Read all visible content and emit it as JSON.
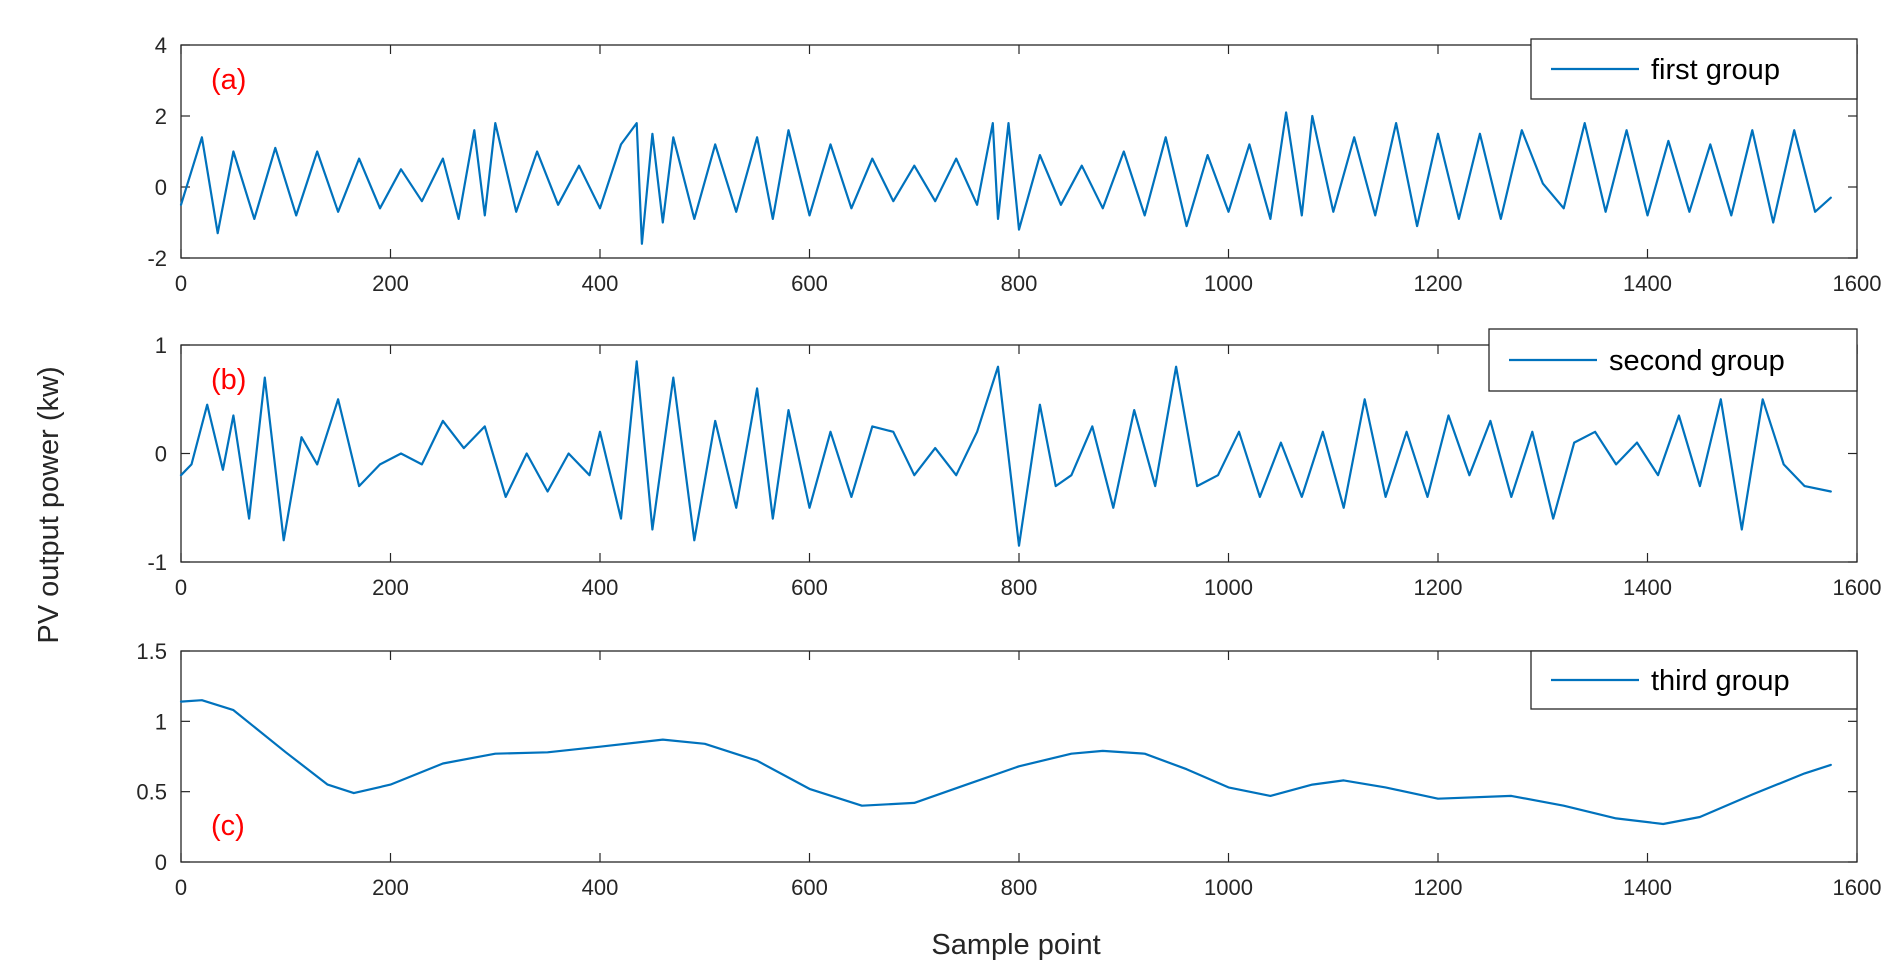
{
  "colors": {
    "line": "#0072BD",
    "panel_label": "#FF0000",
    "axis": "#262626"
  },
  "figure": {
    "ylabel": "PV output power (kw)",
    "xlabel": "Sample point"
  },
  "chart_data": [
    {
      "type": "line",
      "panel_label": "(a)",
      "legend": "first group",
      "legend_position": "top-right",
      "grid": false,
      "xlim": [
        0,
        1600
      ],
      "ylim": [
        -2,
        4
      ],
      "xticks": [
        "0",
        "200",
        "400",
        "600",
        "800",
        "1000",
        "1200",
        "1400",
        "1600"
      ],
      "yticks": [
        "-2",
        "0",
        "2",
        "4"
      ],
      "series": [
        {
          "name": "first group",
          "x": [
            0,
            20,
            35,
            50,
            70,
            90,
            110,
            130,
            150,
            170,
            190,
            210,
            230,
            250,
            265,
            280,
            290,
            300,
            320,
            340,
            360,
            380,
            400,
            420,
            435,
            440,
            450,
            460,
            470,
            490,
            510,
            530,
            550,
            565,
            580,
            600,
            620,
            640,
            660,
            680,
            700,
            720,
            740,
            760,
            775,
            780,
            790,
            800,
            820,
            840,
            860,
            880,
            900,
            920,
            940,
            960,
            980,
            1000,
            1020,
            1040,
            1055,
            1070,
            1080,
            1100,
            1120,
            1140,
            1160,
            1180,
            1200,
            1220,
            1240,
            1260,
            1280,
            1300,
            1320,
            1340,
            1360,
            1380,
            1400,
            1420,
            1440,
            1460,
            1480,
            1500,
            1520,
            1540,
            1560,
            1575
          ],
          "y": [
            -0.5,
            1.4,
            -1.3,
            1.0,
            -0.9,
            1.1,
            -0.8,
            1.0,
            -0.7,
            0.8,
            -0.6,
            0.5,
            -0.4,
            0.8,
            -0.9,
            1.6,
            -0.8,
            1.8,
            -0.7,
            1.0,
            -0.5,
            0.6,
            -0.6,
            1.2,
            1.8,
            -1.6,
            1.5,
            -1.0,
            1.4,
            -0.9,
            1.2,
            -0.7,
            1.4,
            -0.9,
            1.6,
            -0.8,
            1.2,
            -0.6,
            0.8,
            -0.4,
            0.6,
            -0.4,
            0.8,
            -0.5,
            1.8,
            -0.9,
            1.8,
            -1.2,
            0.9,
            -0.5,
            0.6,
            -0.6,
            1.0,
            -0.8,
            1.4,
            -1.1,
            0.9,
            -0.7,
            1.2,
            -0.9,
            2.1,
            -0.8,
            2.0,
            -0.7,
            1.4,
            -0.8,
            1.8,
            -1.1,
            1.5,
            -0.9,
            1.5,
            -0.9,
            1.6,
            0.1,
            -0.6,
            1.8,
            -0.7,
            1.6,
            -0.8,
            1.3,
            -0.7,
            1.2,
            -0.8,
            1.6,
            -1.0,
            1.6,
            -0.7,
            -0.3
          ]
        }
      ]
    },
    {
      "type": "line",
      "panel_label": "(b)",
      "legend": "second group",
      "legend_position": "top-right",
      "grid": false,
      "xlim": [
        0,
        1600
      ],
      "ylim": [
        -1,
        1
      ],
      "xticks": [
        "0",
        "200",
        "400",
        "600",
        "800",
        "1000",
        "1200",
        "1400",
        "1600"
      ],
      "yticks": [
        "-1",
        "0",
        "1"
      ],
      "series": [
        {
          "name": "second group",
          "x": [
            0,
            10,
            25,
            40,
            50,
            65,
            80,
            98,
            115,
            130,
            150,
            170,
            190,
            210,
            230,
            250,
            270,
            290,
            310,
            330,
            350,
            370,
            390,
            400,
            420,
            435,
            450,
            470,
            490,
            510,
            530,
            550,
            565,
            580,
            600,
            620,
            640,
            660,
            680,
            700,
            720,
            740,
            760,
            780,
            800,
            820,
            835,
            850,
            870,
            890,
            910,
            930,
            950,
            970,
            990,
            1010,
            1030,
            1050,
            1070,
            1090,
            1110,
            1130,
            1150,
            1170,
            1190,
            1210,
            1230,
            1250,
            1270,
            1290,
            1310,
            1330,
            1350,
            1370,
            1390,
            1410,
            1430,
            1450,
            1470,
            1490,
            1510,
            1530,
            1550,
            1575
          ],
          "y": [
            -0.2,
            -0.1,
            0.45,
            -0.15,
            0.35,
            -0.6,
            0.7,
            -0.8,
            0.15,
            -0.1,
            0.5,
            -0.3,
            -0.1,
            0.0,
            -0.1,
            0.3,
            0.05,
            0.25,
            -0.4,
            0.0,
            -0.35,
            0.0,
            -0.2,
            0.2,
            -0.6,
            0.85,
            -0.7,
            0.7,
            -0.8,
            0.3,
            -0.5,
            0.6,
            -0.6,
            0.4,
            -0.5,
            0.2,
            -0.4,
            0.25,
            0.2,
            -0.2,
            0.05,
            -0.2,
            0.2,
            0.8,
            -0.85,
            0.45,
            -0.3,
            -0.2,
            0.25,
            -0.5,
            0.4,
            -0.3,
            0.8,
            -0.3,
            -0.2,
            0.2,
            -0.4,
            0.1,
            -0.4,
            0.2,
            -0.5,
            0.5,
            -0.4,
            0.2,
            -0.4,
            0.35,
            -0.2,
            0.3,
            -0.4,
            0.2,
            -0.6,
            0.1,
            0.2,
            -0.1,
            0.1,
            -0.2,
            0.35,
            -0.3,
            0.5,
            -0.7,
            0.5,
            -0.1,
            -0.3,
            -0.35
          ]
        }
      ]
    },
    {
      "type": "line",
      "panel_label": "(c)",
      "legend": "third group",
      "legend_position": "top-right",
      "grid": false,
      "xlim": [
        0,
        1600
      ],
      "ylim": [
        0,
        1.5
      ],
      "xticks": [
        "0",
        "200",
        "400",
        "600",
        "800",
        "1000",
        "1200",
        "1400",
        "1600"
      ],
      "yticks": [
        "0",
        "0.5",
        "1",
        "1.5"
      ],
      "series": [
        {
          "name": "third group",
          "x": [
            0,
            20,
            50,
            100,
            140,
            165,
            200,
            250,
            300,
            350,
            400,
            460,
            500,
            550,
            600,
            650,
            700,
            750,
            800,
            850,
            880,
            920,
            960,
            1000,
            1040,
            1080,
            1110,
            1150,
            1200,
            1270,
            1320,
            1370,
            1415,
            1450,
            1500,
            1550,
            1575
          ],
          "y": [
            1.14,
            1.15,
            1.08,
            0.78,
            0.55,
            0.49,
            0.55,
            0.7,
            0.77,
            0.78,
            0.82,
            0.87,
            0.84,
            0.72,
            0.52,
            0.4,
            0.42,
            0.55,
            0.68,
            0.77,
            0.79,
            0.77,
            0.66,
            0.53,
            0.47,
            0.55,
            0.58,
            0.53,
            0.45,
            0.47,
            0.4,
            0.31,
            0.27,
            0.32,
            0.48,
            0.63,
            0.69
          ]
        }
      ]
    }
  ]
}
